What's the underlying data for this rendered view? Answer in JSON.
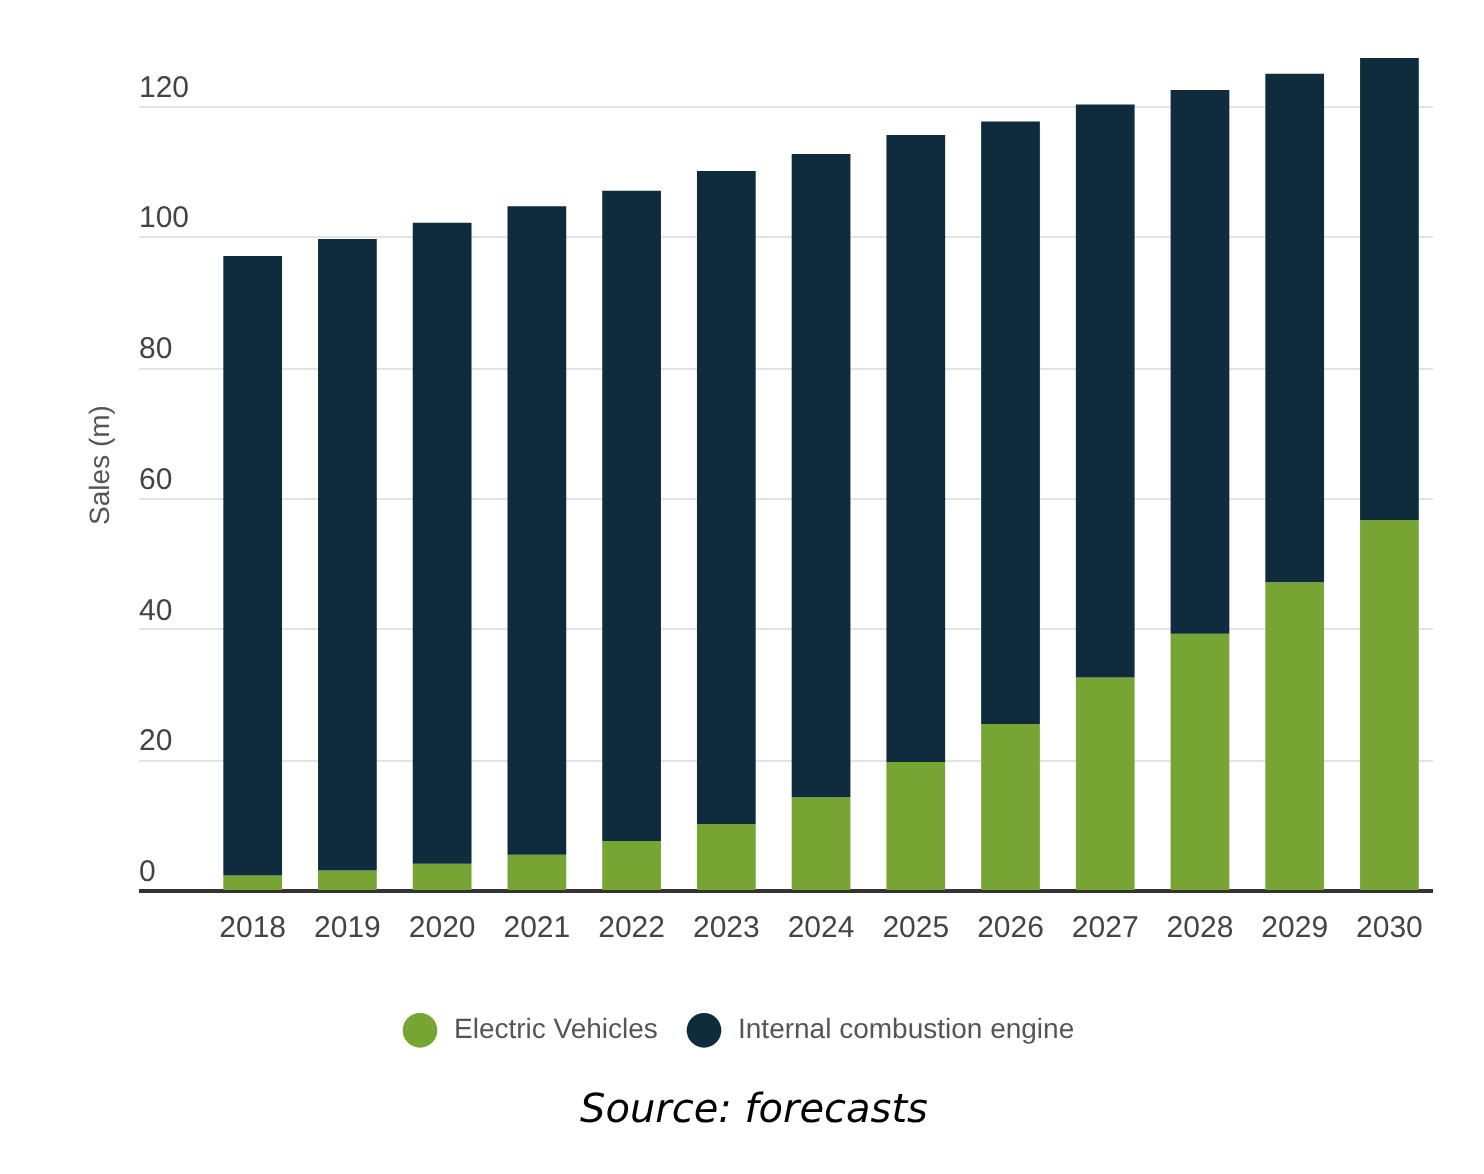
{
  "chart_data": {
    "type": "bar",
    "ylabel": "Sales (m)",
    "categories": [
      "2018",
      "2019",
      "2020",
      "2021",
      "2022",
      "2023",
      "2024",
      "2025",
      "2026",
      "2027",
      "2028",
      "2029",
      "2030"
    ],
    "series": [
      {
        "name": "Electric Vehicles",
        "color": "#76a533",
        "values": [
          2.2,
          3.0,
          4.0,
          5.4,
          7.5,
          10.1,
          14.2,
          19.6,
          25.4,
          32.5,
          39.2,
          47.1,
          56.6
        ]
      },
      {
        "name": "Internal combustion engine",
        "color": "#0f2c3d",
        "values": [
          94.8,
          96.6,
          98.1,
          99.2,
          99.5,
          99.9,
          98.4,
          95.9,
          92.2,
          87.7,
          83.2,
          77.8,
          70.7
        ]
      }
    ],
    "stacked": true,
    "ylim": [
      0,
      127.3
    ],
    "yticks": [
      0,
      20,
      40,
      60,
      80,
      100,
      120
    ],
    "grid": "y",
    "legend": "bottom",
    "annotations": [
      "Source: forecasts"
    ]
  }
}
